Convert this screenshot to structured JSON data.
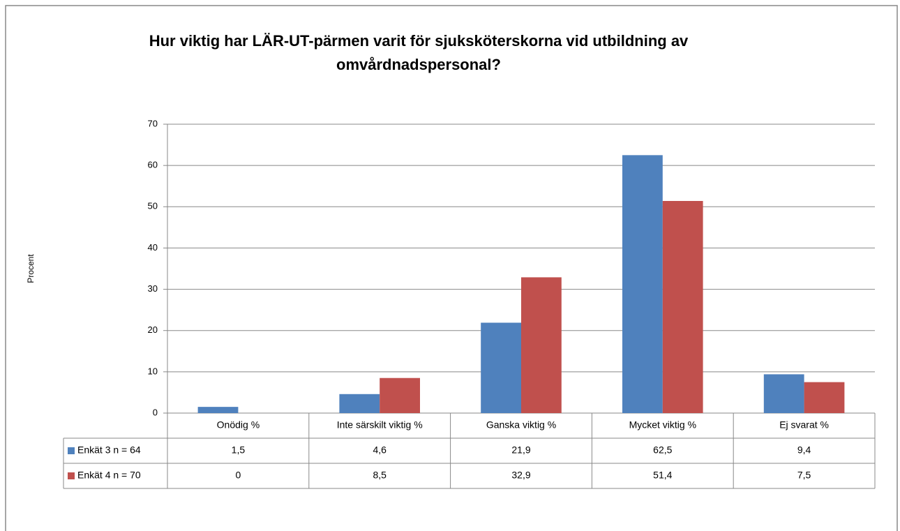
{
  "chart_data": {
    "type": "bar",
    "title": "Hur viktig har LÄR-UT-pärmen varit för sjuksköterskorna vid utbildning av omvårdnadspersonal?",
    "y_label": "Procent",
    "categories": [
      "Onödig %",
      "Inte särskilt viktig %",
      "Ganska viktig %",
      "Mycket viktig %",
      "Ej svarat %"
    ],
    "series": [
      {
        "name": "Enkät 3 n = 64",
        "color": "#4f81bd",
        "values": [
          1.5,
          4.6,
          21.9,
          62.5,
          9.4
        ],
        "value_labels": [
          "1,5",
          "4,6",
          "21,9",
          "62,5",
          "9,4"
        ]
      },
      {
        "name": "Enkät 4 n = 70",
        "color": "#c0504d",
        "values": [
          0,
          8.5,
          32.9,
          51.4,
          7.5
        ],
        "value_labels": [
          "0",
          "8,5",
          "32,9",
          "51,4",
          "7,5"
        ]
      }
    ],
    "ylim": [
      0,
      70
    ],
    "yticks": [
      0,
      10,
      20,
      30,
      40,
      50,
      60,
      70
    ],
    "grid": true
  }
}
